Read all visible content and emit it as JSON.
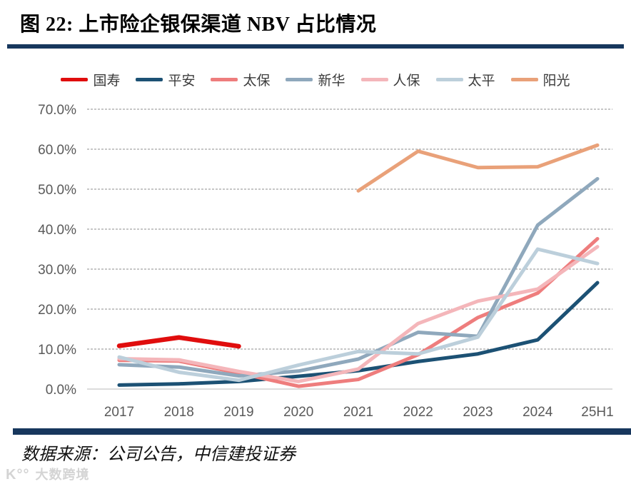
{
  "title": "图 22:  上市险企银保渠道 NBV 占比情况",
  "source": {
    "text": "数据来源：公司公告，中信建投证券"
  },
  "watermark": {
    "logo": "K°°",
    "text": "大数跨境"
  },
  "colors": {
    "title_rule": "#17375d",
    "bottom_bar": "#17375d",
    "grid_line": "#8c8c8c",
    "baseline": "#d0d0d0",
    "axis_text": "#595959"
  },
  "chart_data": {
    "type": "line",
    "title": "上市险企银保渠道 NBV 占比情况",
    "categories": [
      "2017",
      "2018",
      "2019",
      "2020",
      "2021",
      "2022",
      "2023",
      "2024",
      "25H1"
    ],
    "series": [
      {
        "name": "国寿",
        "color": "#e00d0d",
        "values": [
          10.8,
          12.9,
          10.7,
          null,
          null,
          null,
          null,
          null,
          null
        ]
      },
      {
        "name": "平安",
        "color": "#1c5174",
        "values": [
          1.0,
          1.3,
          1.9,
          3.2,
          4.6,
          6.9,
          8.8,
          12.3,
          26.6
        ]
      },
      {
        "name": "太保",
        "color": "#ee7d7d",
        "values": [
          7.2,
          7.0,
          4.0,
          0.7,
          2.4,
          8.6,
          17.9,
          24.0,
          37.6
        ]
      },
      {
        "name": "新华",
        "color": "#8fa8bc",
        "values": [
          6.1,
          5.5,
          3.3,
          4.5,
          7.5,
          14.2,
          13.2,
          41.0,
          52.6
        ]
      },
      {
        "name": "人保",
        "color": "#f4b6ba",
        "values": [
          7.6,
          7.3,
          4.4,
          1.9,
          5.0,
          16.4,
          22.0,
          25.0,
          35.6
        ]
      },
      {
        "name": "太平",
        "color": "#bccfdb",
        "values": [
          8.0,
          4.2,
          2.2,
          6.0,
          9.4,
          8.8,
          13.0,
          35.0,
          31.4
        ]
      },
      {
        "name": "阳光",
        "color": "#e9a179",
        "values": [
          null,
          null,
          null,
          null,
          49.6,
          59.5,
          55.4,
          55.6,
          61.0
        ]
      }
    ],
    "xlabel": "",
    "ylabel": "",
    "ylim": [
      0,
      70
    ],
    "ytick_step": 10,
    "ytick_labels": [
      "0.0%",
      "10.0%",
      "20.0%",
      "30.0%",
      "40.0%",
      "50.0%",
      "60.0%",
      "70.0%"
    ],
    "grid": "horizontal-dashed",
    "legend_position": "top"
  }
}
